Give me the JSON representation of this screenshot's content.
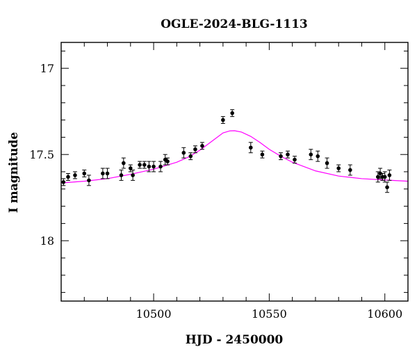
{
  "chart_data": {
    "type": "scatter",
    "title": "OGLE-2024-BLG-1113",
    "xlabel": "HJD - 2450000",
    "ylabel": "I magnitude",
    "xlim": [
      10460,
      10610
    ],
    "ylim": [
      18.35,
      16.85
    ],
    "y_inverted": true,
    "xticks": [
      10500,
      10550,
      10600
    ],
    "yticks": [
      17,
      17.5,
      18
    ],
    "xtick_labels": [
      "10500",
      "10550",
      "10600"
    ],
    "ytick_labels": [
      "17",
      "17.5",
      "18"
    ],
    "grid": false,
    "colors": {
      "points": "#000000",
      "model": "#ff00ff",
      "frame": "#000000"
    },
    "series": [
      {
        "kind": "points",
        "x": [
          10461,
          10463,
          10466,
          10470,
          10472,
          10478,
          10480,
          10486,
          10487,
          10490,
          10491,
          10494,
          10496,
          10498,
          10500,
          10503,
          10505,
          10506,
          10513,
          10516,
          10518,
          10521,
          10530,
          10534,
          10542,
          10547,
          10555,
          10558,
          10561,
          10568,
          10571,
          10575,
          10580,
          10585,
          10597,
          10598,
          10599,
          10600,
          10601,
          10602
        ],
        "y": [
          17.66,
          17.63,
          17.62,
          17.61,
          17.65,
          17.61,
          17.61,
          17.62,
          17.55,
          17.58,
          17.62,
          17.56,
          17.56,
          17.57,
          17.57,
          17.57,
          17.53,
          17.54,
          17.49,
          17.51,
          17.47,
          17.45,
          17.3,
          17.26,
          17.46,
          17.5,
          17.51,
          17.5,
          17.53,
          17.5,
          17.51,
          17.55,
          17.58,
          17.59,
          17.63,
          17.61,
          17.63,
          17.63,
          17.69,
          17.62
        ],
        "err": [
          0.02,
          0.02,
          0.02,
          0.02,
          0.03,
          0.03,
          0.03,
          0.03,
          0.03,
          0.02,
          0.03,
          0.02,
          0.02,
          0.03,
          0.03,
          0.03,
          0.03,
          0.02,
          0.03,
          0.02,
          0.02,
          0.02,
          0.02,
          0.02,
          0.03,
          0.02,
          0.02,
          0.02,
          0.02,
          0.03,
          0.03,
          0.03,
          0.02,
          0.03,
          0.03,
          0.03,
          0.02,
          0.03,
          0.03,
          0.03
        ]
      },
      {
        "kind": "model",
        "x": [
          10460,
          10470,
          10480,
          10490,
          10500,
          10510,
          10515,
          10520,
          10525,
          10530,
          10533,
          10535,
          10538,
          10542,
          10546,
          10550,
          10555,
          10560,
          10570,
          10580,
          10590,
          10600,
          10610
        ],
        "y": [
          17.665,
          17.655,
          17.64,
          17.615,
          17.585,
          17.545,
          17.515,
          17.475,
          17.425,
          17.375,
          17.363,
          17.362,
          17.37,
          17.395,
          17.43,
          17.47,
          17.51,
          17.545,
          17.595,
          17.625,
          17.64,
          17.648,
          17.655
        ]
      }
    ]
  }
}
